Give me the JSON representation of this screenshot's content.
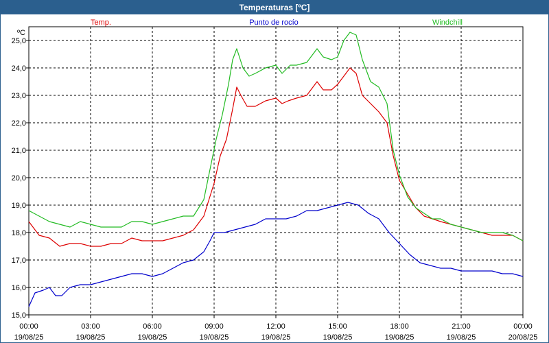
{
  "window": {
    "title": "Temperaturas [ºC]"
  },
  "chart_data": {
    "type": "line",
    "unit": "ºC",
    "ylim": [
      15.0,
      25.5
    ],
    "y_ticks": [
      "15,0",
      "16,0",
      "17,0",
      "18,0",
      "19,0",
      "20,0",
      "21,0",
      "22,0",
      "23,0",
      "24,0",
      "25,0"
    ],
    "x_ticks": [
      {
        "time": "00:00",
        "date": "19/08/25"
      },
      {
        "time": "03:00",
        "date": "19/08/25"
      },
      {
        "time": "06:00",
        "date": "19/08/25"
      },
      {
        "time": "09:00",
        "date": "19/08/25"
      },
      {
        "time": "12:00",
        "date": "19/08/25"
      },
      {
        "time": "15:00",
        "date": "19/08/25"
      },
      {
        "time": "18:00",
        "date": "19/08/25"
      },
      {
        "time": "21:00",
        "date": "19/08/25"
      },
      {
        "time": "00:00",
        "date": "20/08/25"
      }
    ],
    "xlim_hours": [
      0,
      24
    ],
    "grid": true,
    "legend_placement": "top",
    "series": [
      {
        "name": "Temp.",
        "color": "#dd0000",
        "points": [
          [
            0,
            18.4
          ],
          [
            0.5,
            17.9
          ],
          [
            1,
            17.8
          ],
          [
            1.5,
            17.5
          ],
          [
            2,
            17.6
          ],
          [
            2.5,
            17.6
          ],
          [
            3,
            17.5
          ],
          [
            3.5,
            17.5
          ],
          [
            4,
            17.6
          ],
          [
            4.5,
            17.6
          ],
          [
            5,
            17.8
          ],
          [
            5.5,
            17.7
          ],
          [
            6,
            17.7
          ],
          [
            6.5,
            17.7
          ],
          [
            7,
            17.8
          ],
          [
            7.5,
            17.9
          ],
          [
            8,
            18.1
          ],
          [
            8.5,
            18.6
          ],
          [
            9,
            19.8
          ],
          [
            9.3,
            20.8
          ],
          [
            9.6,
            21.4
          ],
          [
            9.9,
            22.5
          ],
          [
            10.1,
            23.3
          ],
          [
            10.3,
            23.0
          ],
          [
            10.6,
            22.6
          ],
          [
            11,
            22.6
          ],
          [
            11.5,
            22.8
          ],
          [
            12,
            22.9
          ],
          [
            12.3,
            22.7
          ],
          [
            12.6,
            22.8
          ],
          [
            13,
            22.9
          ],
          [
            13.5,
            23.0
          ],
          [
            14,
            23.5
          ],
          [
            14.3,
            23.2
          ],
          [
            14.7,
            23.2
          ],
          [
            15,
            23.4
          ],
          [
            15.3,
            23.7
          ],
          [
            15.6,
            24.0
          ],
          [
            15.9,
            23.8
          ],
          [
            16.2,
            23.0
          ],
          [
            16.6,
            22.7
          ],
          [
            17,
            22.4
          ],
          [
            17.4,
            22.0
          ],
          [
            17.7,
            20.8
          ],
          [
            18,
            19.9
          ],
          [
            18.4,
            19.4
          ],
          [
            18.8,
            18.9
          ],
          [
            19.2,
            18.6
          ],
          [
            19.6,
            18.5
          ],
          [
            20,
            18.4
          ],
          [
            20.5,
            18.3
          ],
          [
            21,
            18.2
          ],
          [
            21.5,
            18.1
          ],
          [
            22,
            18.0
          ],
          [
            22.5,
            17.9
          ],
          [
            23,
            17.9
          ],
          [
            23.5,
            17.9
          ],
          [
            24,
            17.7
          ]
        ]
      },
      {
        "name": "Punto de rocío",
        "color": "#0000cc",
        "points": [
          [
            0,
            15.3
          ],
          [
            0.3,
            15.8
          ],
          [
            0.7,
            15.9
          ],
          [
            1,
            16.0
          ],
          [
            1.3,
            15.7
          ],
          [
            1.6,
            15.7
          ],
          [
            2,
            16.0
          ],
          [
            2.5,
            16.1
          ],
          [
            3,
            16.1
          ],
          [
            3.5,
            16.2
          ],
          [
            4,
            16.3
          ],
          [
            4.5,
            16.4
          ],
          [
            5,
            16.5
          ],
          [
            5.5,
            16.5
          ],
          [
            6,
            16.4
          ],
          [
            6.5,
            16.5
          ],
          [
            7,
            16.7
          ],
          [
            7.5,
            16.9
          ],
          [
            8,
            17.0
          ],
          [
            8.5,
            17.3
          ],
          [
            8.8,
            17.7
          ],
          [
            9,
            18.0
          ],
          [
            9.5,
            18.0
          ],
          [
            10,
            18.1
          ],
          [
            10.5,
            18.2
          ],
          [
            11,
            18.3
          ],
          [
            11.5,
            18.5
          ],
          [
            12,
            18.5
          ],
          [
            12.5,
            18.5
          ],
          [
            13,
            18.6
          ],
          [
            13.5,
            18.8
          ],
          [
            14,
            18.8
          ],
          [
            14.5,
            18.9
          ],
          [
            15,
            19.0
          ],
          [
            15.5,
            19.1
          ],
          [
            16,
            19.0
          ],
          [
            16.5,
            18.7
          ],
          [
            17,
            18.5
          ],
          [
            17.5,
            18.0
          ],
          [
            18,
            17.6
          ],
          [
            18.5,
            17.2
          ],
          [
            19,
            16.9
          ],
          [
            19.5,
            16.8
          ],
          [
            20,
            16.7
          ],
          [
            20.5,
            16.7
          ],
          [
            21,
            16.6
          ],
          [
            21.5,
            16.6
          ],
          [
            22,
            16.6
          ],
          [
            22.5,
            16.6
          ],
          [
            23,
            16.5
          ],
          [
            23.5,
            16.5
          ],
          [
            24,
            16.4
          ]
        ]
      },
      {
        "name": "Windchill",
        "color": "#22bb22",
        "points": [
          [
            0,
            18.8
          ],
          [
            0.5,
            18.6
          ],
          [
            1,
            18.4
          ],
          [
            1.5,
            18.3
          ],
          [
            2,
            18.2
          ],
          [
            2.5,
            18.4
          ],
          [
            3,
            18.3
          ],
          [
            3.5,
            18.2
          ],
          [
            4,
            18.2
          ],
          [
            4.5,
            18.2
          ],
          [
            5,
            18.4
          ],
          [
            5.5,
            18.4
          ],
          [
            6,
            18.3
          ],
          [
            6.5,
            18.4
          ],
          [
            7,
            18.5
          ],
          [
            7.5,
            18.6
          ],
          [
            8,
            18.6
          ],
          [
            8.5,
            19.2
          ],
          [
            8.8,
            20.3
          ],
          [
            9.1,
            21.4
          ],
          [
            9.4,
            22.3
          ],
          [
            9.7,
            23.4
          ],
          [
            9.9,
            24.3
          ],
          [
            10.1,
            24.7
          ],
          [
            10.4,
            24.0
          ],
          [
            10.7,
            23.7
          ],
          [
            11,
            23.8
          ],
          [
            11.5,
            24.0
          ],
          [
            12,
            24.1
          ],
          [
            12.3,
            23.8
          ],
          [
            12.7,
            24.1
          ],
          [
            13,
            24.1
          ],
          [
            13.5,
            24.2
          ],
          [
            14,
            24.7
          ],
          [
            14.3,
            24.4
          ],
          [
            14.7,
            24.3
          ],
          [
            15,
            24.4
          ],
          [
            15.3,
            25.0
          ],
          [
            15.6,
            25.3
          ],
          [
            15.9,
            25.2
          ],
          [
            16.2,
            24.3
          ],
          [
            16.6,
            23.5
          ],
          [
            17,
            23.3
          ],
          [
            17.4,
            22.7
          ],
          [
            17.7,
            21.0
          ],
          [
            18,
            20.1
          ],
          [
            18.4,
            19.3
          ],
          [
            18.8,
            18.9
          ],
          [
            19.2,
            18.7
          ],
          [
            19.6,
            18.5
          ],
          [
            20,
            18.5
          ],
          [
            20.5,
            18.3
          ],
          [
            21,
            18.2
          ],
          [
            21.5,
            18.1
          ],
          [
            22,
            18.0
          ],
          [
            22.5,
            18.0
          ],
          [
            23,
            18.0
          ],
          [
            23.5,
            17.9
          ],
          [
            24,
            17.7
          ]
        ]
      }
    ]
  }
}
